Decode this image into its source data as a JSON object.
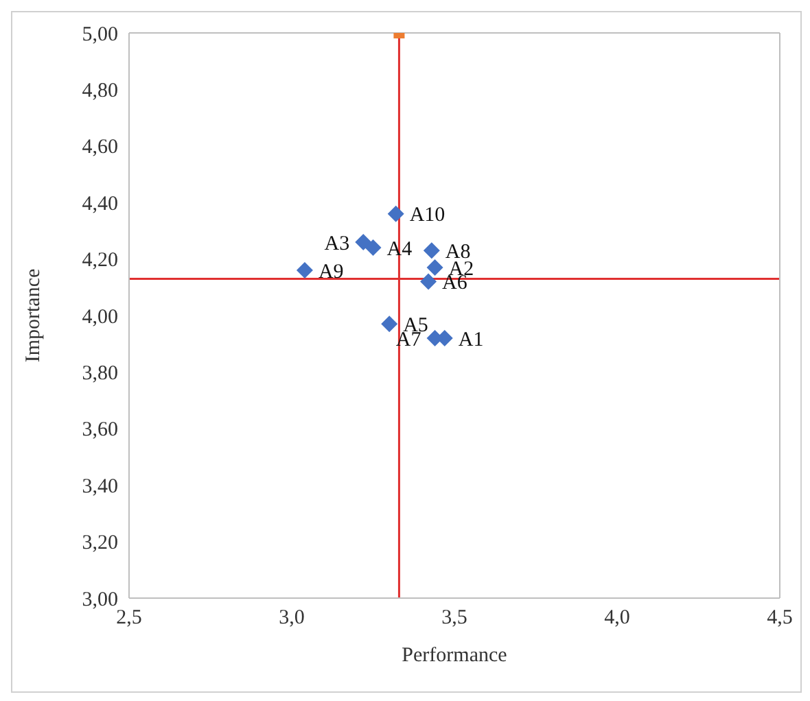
{
  "chart_data": {
    "type": "scatter",
    "xlabel": "Performance",
    "ylabel": "Importance",
    "xlim": [
      2.5,
      4.5
    ],
    "xticks": [
      {
        "value": 2.5,
        "label": "2,5"
      },
      {
        "value": 3.0,
        "label": "3,0"
      },
      {
        "value": 3.5,
        "label": "3,5"
      },
      {
        "value": 4.0,
        "label": "4,0"
      },
      {
        "value": 4.5,
        "label": "4,5"
      }
    ],
    "ylim": [
      3.0,
      5.0
    ],
    "yticks": [
      {
        "value": 3.0,
        "label": "3,00"
      },
      {
        "value": 3.2,
        "label": "3,20"
      },
      {
        "value": 3.4,
        "label": "3,40"
      },
      {
        "value": 3.6,
        "label": "3,60"
      },
      {
        "value": 3.8,
        "label": "3,80"
      },
      {
        "value": 4.0,
        "label": "4,00"
      },
      {
        "value": 4.2,
        "label": "4,20"
      },
      {
        "value": 4.4,
        "label": "4,40"
      },
      {
        "value": 4.6,
        "label": "4,60"
      },
      {
        "value": 4.8,
        "label": "4,80"
      },
      {
        "value": 5.0,
        "label": "5,00"
      }
    ],
    "grid": false,
    "legend": false,
    "series": [
      {
        "color": "#4472c4",
        "marker": "diamond",
        "x": [
          3.47,
          3.44,
          3.22,
          3.25,
          3.3,
          3.42,
          3.44,
          3.43,
          3.04,
          3.32
        ],
        "values": [
          3.92,
          4.17,
          4.26,
          4.24,
          3.97,
          4.12,
          3.92,
          4.23,
          4.16,
          4.36
        ]
      },
      {
        "color": "#ed7d31",
        "marker": "square",
        "x": [
          3.33
        ],
        "values": [
          5.0
        ]
      }
    ],
    "ref_lines": [
      {
        "axis": "x",
        "value": 3.33,
        "color": "#e03030"
      },
      {
        "axis": "y",
        "value": 4.13,
        "color": "#e03030"
      }
    ],
    "annotations": [
      {
        "text": "A1",
        "x": 3.47,
        "y": 3.92
      },
      {
        "text": "A2",
        "x": 3.44,
        "y": 4.17
      },
      {
        "text": "A3",
        "x": 3.22,
        "y": 4.26
      },
      {
        "text": "A4",
        "x": 3.25,
        "y": 4.24
      },
      {
        "text": "A5",
        "x": 3.3,
        "y": 3.97
      },
      {
        "text": "A6",
        "x": 3.42,
        "y": 4.12
      },
      {
        "text": "A7",
        "x": 3.44,
        "y": 3.92
      },
      {
        "text": "A8",
        "x": 3.43,
        "y": 4.23
      },
      {
        "text": "A9",
        "x": 3.04,
        "y": 4.16
      },
      {
        "text": "A10",
        "x": 3.32,
        "y": 4.36
      }
    ]
  }
}
